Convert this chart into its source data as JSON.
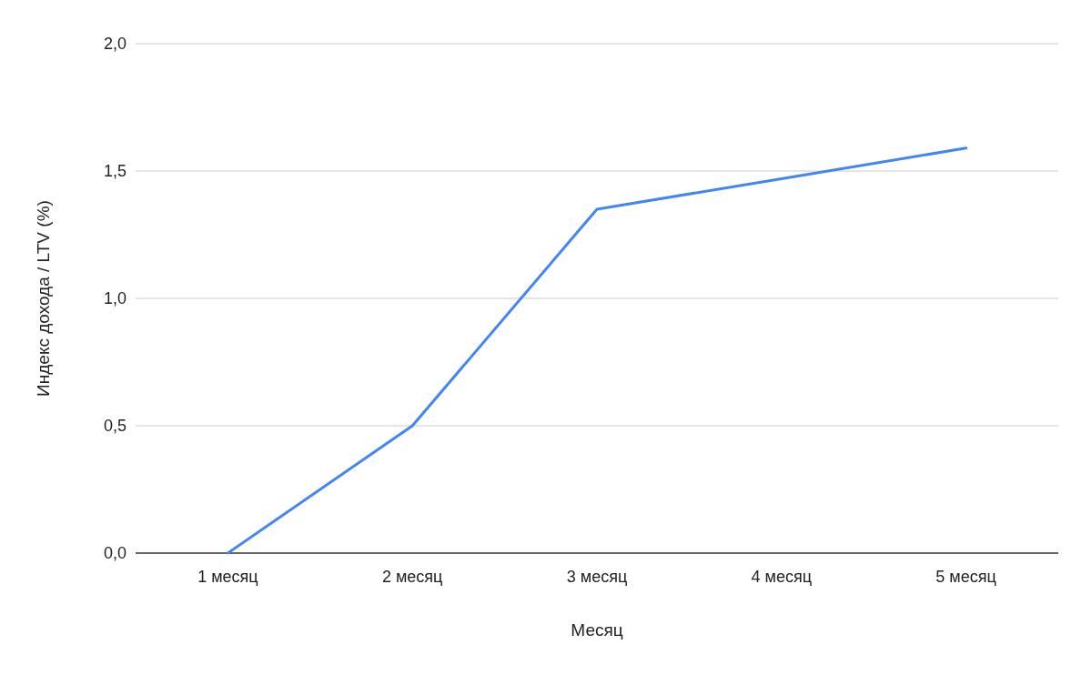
{
  "chart_data": {
    "type": "line",
    "xlabel": "Месяц",
    "ylabel": "Индекс дохода / LTV (%)",
    "categories": [
      "1 месяц",
      "2 месяц",
      "3 месяц",
      "4 месяц",
      "5 месяц"
    ],
    "series": [
      {
        "color": "#4285f4",
        "values": [
          0,
          0.5,
          1.35,
          1.47,
          1.59
        ]
      }
    ],
    "ylim": [
      0,
      2
    ],
    "yticks": [
      {
        "value": 0,
        "label": "0,0"
      },
      {
        "value": 0.5,
        "label": "0,5"
      },
      {
        "value": 1,
        "label": "1,0"
      },
      {
        "value": 1.5,
        "label": "1,5"
      },
      {
        "value": 2,
        "label": "2,0"
      }
    ],
    "grid": "y",
    "marker": "none",
    "line_style": "solid"
  }
}
